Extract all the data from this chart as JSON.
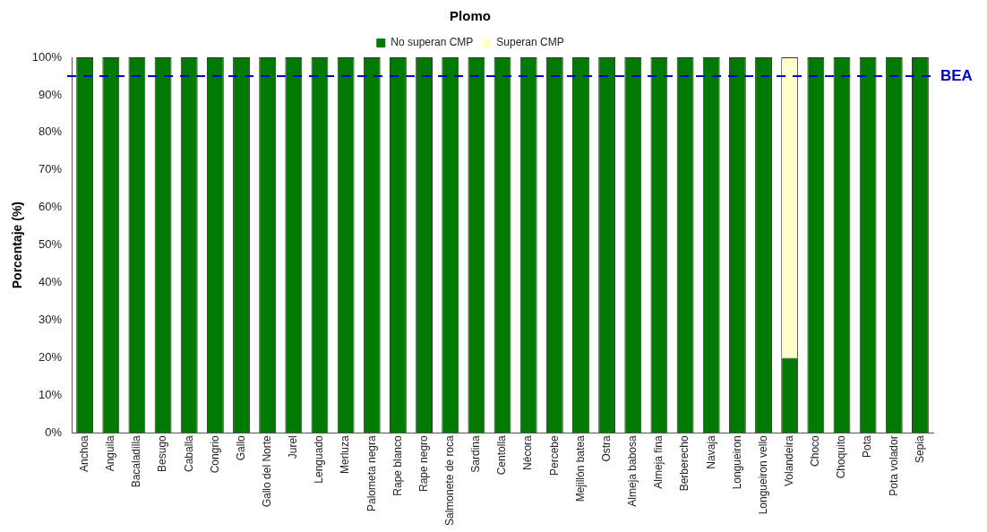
{
  "chart_data": {
    "type": "bar",
    "title": "Plomo",
    "ylabel": "Porcentaje (%)",
    "stacked": true,
    "legend": "top",
    "grid": false,
    "categories": [
      "Anchoa",
      "Anguila",
      "Bacaladilla",
      "Besugo",
      "Caballa",
      "Congrio",
      "Gallo",
      "Gallo del Norte",
      "Jurel",
      "Lenguado",
      "Merluza",
      "Palometa negra",
      "Rape blanco",
      "Rape negro",
      "Salmonete de roca",
      "Sardina",
      "Centolla",
      "Nécora",
      "Percebe",
      "Mejillón batea",
      "Ostra",
      "Almeja babosa",
      "Almeja fina",
      "Berberecho",
      "Navaja",
      "Longueiron",
      "Longueiron vello",
      "Volandeira",
      "Choco",
      "Choquito",
      "Pota",
      "Pota volador",
      "Sepia"
    ],
    "series": [
      {
        "name": "No superan CMP",
        "color": "#007a00",
        "values": [
          100,
          100,
          100,
          100,
          100,
          100,
          100,
          100,
          100,
          100,
          100,
          100,
          100,
          100,
          100,
          100,
          100,
          100,
          100,
          100,
          100,
          100,
          100,
          100,
          100,
          100,
          100,
          20,
          100,
          100,
          100,
          100,
          100
        ]
      },
      {
        "name": "Superan CMP",
        "color": "#ffffcc",
        "values": [
          0,
          0,
          0,
          0,
          0,
          0,
          0,
          0,
          0,
          0,
          0,
          0,
          0,
          0,
          0,
          0,
          0,
          0,
          0,
          0,
          0,
          0,
          0,
          0,
          0,
          0,
          0,
          80,
          0,
          0,
          0,
          0,
          0
        ]
      }
    ],
    "ylim": [
      0,
      100
    ],
    "yticks": [
      {
        "value": 0,
        "label": "0%"
      },
      {
        "value": 10,
        "label": "10%"
      },
      {
        "value": 20,
        "label": "20%"
      },
      {
        "value": 30,
        "label": "30%"
      },
      {
        "value": 40,
        "label": "40%"
      },
      {
        "value": 50,
        "label": "50%"
      },
      {
        "value": 60,
        "label": "60%"
      },
      {
        "value": 70,
        "label": "70%"
      },
      {
        "value": 80,
        "label": "80%"
      },
      {
        "value": 90,
        "label": "90%"
      },
      {
        "value": 100,
        "label": "100%"
      }
    ],
    "ref_lines": [
      {
        "axis": "y",
        "value": 95,
        "label": "BEA",
        "color": "#0000cc",
        "line_style": "dashed"
      }
    ]
  }
}
